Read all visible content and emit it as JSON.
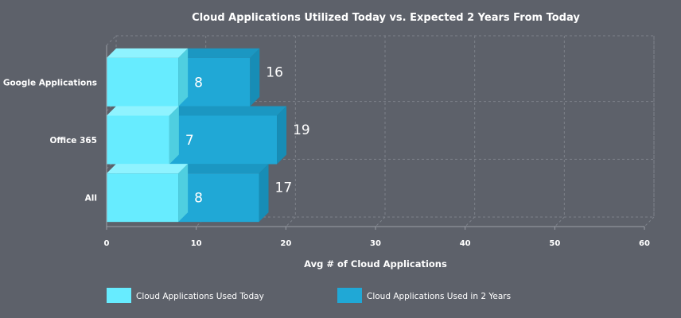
{
  "chart_data": {
    "type": "bar",
    "orientation": "horizontal",
    "stacked": true,
    "style": "3d",
    "title": "Cloud Applications Utilized Today vs. Expected 2 Years From Today",
    "xlabel": "Avg # of Cloud Applications",
    "ylabel": "",
    "categories": [
      "Google Applications",
      "Office 365",
      "All"
    ],
    "series": [
      {
        "name": "Cloud Applications Used Today",
        "values": [
          8,
          7,
          8
        ],
        "color": "#67ecff",
        "side_color": "#4fcfe0",
        "top_color": "#8ff3ff"
      },
      {
        "name": "Cloud Applications Used in 2 Years",
        "values": [
          8,
          12,
          9
        ],
        "color": "#20a8d6",
        "side_color": "#178db6",
        "top_color": "#1b97c2"
      }
    ],
    "data_labels": [
      {
        "today": "8",
        "total": "16"
      },
      {
        "today": "7",
        "total": "19"
      },
      {
        "today": "8",
        "total": "17"
      }
    ],
    "xlim": [
      0,
      60
    ],
    "xticks": [
      "0",
      "10",
      "20",
      "30",
      "40",
      "50",
      "60"
    ],
    "grid": true,
    "legend_position": "bottom",
    "background_color": "#5d616a",
    "grid_color": "#7d818a"
  }
}
